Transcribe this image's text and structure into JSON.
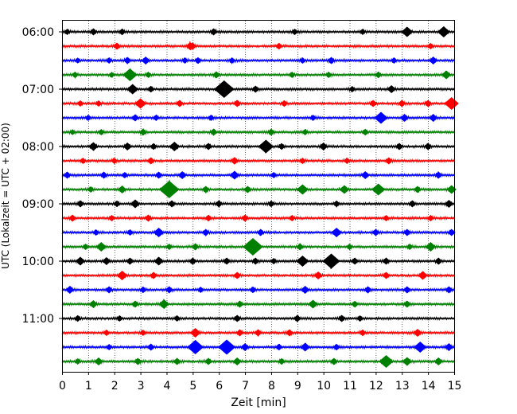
{
  "chart_data": {
    "type": "line",
    "title": "",
    "xlabel": "Zeit  [min]",
    "ylabel": "UTC (Lokalzeit = UTC + 02:00)",
    "xlim": [
      0,
      15
    ],
    "x_ticks": [
      "0",
      "1",
      "2",
      "3",
      "4",
      "5",
      "6",
      "7",
      "8",
      "9",
      "10",
      "11",
      "12",
      "13",
      "14",
      "15"
    ],
    "y_tick_labels": [
      "06:00",
      "07:00",
      "08:00",
      "09:00",
      "10:00",
      "11:00"
    ],
    "grid": "vertical dotted",
    "trace_interval_minutes": 15,
    "colors": [
      "#000000",
      "#ff0000",
      "#0000ff",
      "#008000"
    ],
    "series": [
      {
        "start": "06:00",
        "color": "#000000",
        "events": [
          [
            0.2,
            0.4
          ],
          [
            1.2,
            0.5
          ],
          [
            2.3,
            0.45
          ],
          [
            5.8,
            0.5
          ],
          [
            8.9,
            0.4
          ],
          [
            11.5,
            0.4
          ],
          [
            13.2,
            0.9
          ],
          [
            14.6,
            1.0
          ]
        ]
      },
      {
        "start": "06:15",
        "color": "#ff0000",
        "events": [
          [
            2.1,
            0.5
          ],
          [
            4.9,
            0.6
          ],
          [
            5.0,
            0.5
          ],
          [
            8.3,
            0.45
          ],
          [
            14.1,
            0.4
          ]
        ]
      },
      {
        "start": "06:30",
        "color": "#0000ff",
        "events": [
          [
            0.6,
            0.35
          ],
          [
            1.8,
            0.4
          ],
          [
            2.5,
            0.5
          ],
          [
            3.2,
            0.6
          ],
          [
            4.7,
            0.4
          ],
          [
            5.2,
            0.45
          ],
          [
            6.5,
            0.4
          ],
          [
            9.2,
            0.4
          ],
          [
            10.3,
            0.5
          ],
          [
            12.7,
            0.4
          ],
          [
            14.2,
            0.6
          ]
        ]
      },
      {
        "start": "06:45",
        "color": "#008000",
        "events": [
          [
            0.5,
            0.4
          ],
          [
            1.9,
            0.35
          ],
          [
            2.6,
            1.2
          ],
          [
            3.3,
            0.4
          ],
          [
            5.9,
            0.5
          ],
          [
            8.8,
            0.4
          ],
          [
            10.2,
            0.4
          ],
          [
            12.1,
            0.45
          ],
          [
            14.7,
            0.7
          ]
        ]
      },
      {
        "start": "07:00",
        "color": "#000000",
        "events": [
          [
            2.7,
            0.9
          ],
          [
            3.4,
            0.45
          ],
          [
            6.2,
            1.8
          ],
          [
            7.4,
            0.5
          ],
          [
            11.1,
            0.4
          ],
          [
            12.6,
            0.6
          ]
        ]
      },
      {
        "start": "07:15",
        "color": "#ff0000",
        "events": [
          [
            0.7,
            0.4
          ],
          [
            1.4,
            0.4
          ],
          [
            3.0,
            0.9
          ],
          [
            4.5,
            0.5
          ],
          [
            6.7,
            0.5
          ],
          [
            8.5,
            0.45
          ],
          [
            11.9,
            0.5
          ],
          [
            13.0,
            0.5
          ],
          [
            14.0,
            0.5
          ],
          [
            14.9,
            1.2
          ]
        ]
      },
      {
        "start": "07:30",
        "color": "#0000ff",
        "events": [
          [
            1.0,
            0.4
          ],
          [
            2.8,
            0.5
          ],
          [
            3.6,
            0.4
          ],
          [
            5.7,
            0.4
          ],
          [
            9.6,
            0.4
          ],
          [
            12.2,
            1.1
          ],
          [
            13.1,
            0.6
          ],
          [
            14.2,
            0.6
          ]
        ]
      },
      {
        "start": "07:45",
        "color": "#008000",
        "events": [
          [
            0.4,
            0.35
          ],
          [
            1.5,
            0.4
          ],
          [
            3.1,
            0.5
          ],
          [
            5.8,
            0.5
          ],
          [
            8.0,
            0.5
          ],
          [
            9.3,
            0.4
          ],
          [
            11.6,
            0.45
          ]
        ]
      },
      {
        "start": "08:00",
        "color": "#000000",
        "events": [
          [
            1.2,
            0.7
          ],
          [
            2.5,
            0.6
          ],
          [
            3.5,
            0.45
          ],
          [
            4.3,
            0.8
          ],
          [
            5.6,
            0.5
          ],
          [
            7.8,
            1.3
          ],
          [
            8.4,
            0.45
          ],
          [
            10.0,
            0.6
          ],
          [
            12.9,
            0.5
          ],
          [
            14.0,
            0.5
          ]
        ]
      },
      {
        "start": "08:15",
        "color": "#ff0000",
        "events": [
          [
            0.8,
            0.4
          ],
          [
            2.0,
            0.4
          ],
          [
            3.4,
            0.5
          ],
          [
            6.6,
            0.55
          ],
          [
            9.2,
            0.4
          ],
          [
            10.9,
            0.4
          ],
          [
            12.5,
            0.5
          ]
        ]
      },
      {
        "start": "08:30",
        "color": "#0000ff",
        "events": [
          [
            0.2,
            0.5
          ],
          [
            1.6,
            0.5
          ],
          [
            2.4,
            0.4
          ],
          [
            3.7,
            0.5
          ],
          [
            4.6,
            0.6
          ],
          [
            6.6,
            0.7
          ],
          [
            8.1,
            0.4
          ],
          [
            11.6,
            0.6
          ],
          [
            14.4,
            0.5
          ]
        ]
      },
      {
        "start": "08:45",
        "color": "#008000",
        "events": [
          [
            1.1,
            0.4
          ],
          [
            2.3,
            0.6
          ],
          [
            4.1,
            1.8
          ],
          [
            5.5,
            0.5
          ],
          [
            7.1,
            0.5
          ],
          [
            9.2,
            0.9
          ],
          [
            10.8,
            0.7
          ],
          [
            12.1,
            1.1
          ],
          [
            13.6,
            0.5
          ],
          [
            14.9,
            0.7
          ]
        ]
      },
      {
        "start": "09:00",
        "color": "#000000",
        "events": [
          [
            0.7,
            0.5
          ],
          [
            2.1,
            0.45
          ],
          [
            2.8,
            0.7
          ],
          [
            4.2,
            0.5
          ],
          [
            6.0,
            0.5
          ],
          [
            8.0,
            0.45
          ],
          [
            10.5,
            0.45
          ],
          [
            13.4,
            0.5
          ],
          [
            14.8,
            0.6
          ]
        ]
      },
      {
        "start": "09:15",
        "color": "#ff0000",
        "events": [
          [
            0.4,
            0.5
          ],
          [
            1.9,
            0.4
          ],
          [
            3.3,
            0.5
          ],
          [
            5.6,
            0.45
          ],
          [
            7.0,
            0.5
          ],
          [
            8.8,
            0.4
          ],
          [
            12.4,
            0.4
          ],
          [
            14.1,
            0.4
          ]
        ]
      },
      {
        "start": "09:30",
        "color": "#0000ff",
        "events": [
          [
            1.3,
            0.4
          ],
          [
            2.6,
            0.4
          ],
          [
            3.7,
            0.8
          ],
          [
            5.5,
            0.5
          ],
          [
            7.6,
            0.5
          ],
          [
            10.5,
            0.8
          ],
          [
            12.0,
            0.5
          ],
          [
            13.2,
            0.5
          ],
          [
            14.9,
            0.5
          ]
        ]
      },
      {
        "start": "09:45",
        "color": "#008000",
        "events": [
          [
            0.9,
            0.4
          ],
          [
            1.5,
            0.8
          ],
          [
            4.1,
            0.4
          ],
          [
            5.1,
            0.5
          ],
          [
            7.3,
            1.8
          ],
          [
            9.1,
            0.5
          ],
          [
            11.0,
            0.4
          ],
          [
            13.3,
            0.4
          ],
          [
            14.1,
            0.8
          ]
        ]
      },
      {
        "start": "10:00",
        "color": "#000000",
        "events": [
          [
            0.7,
            0.7
          ],
          [
            1.7,
            0.6
          ],
          [
            2.6,
            0.5
          ],
          [
            3.7,
            0.7
          ],
          [
            5.0,
            0.5
          ],
          [
            6.3,
            0.5
          ],
          [
            7.4,
            0.5
          ],
          [
            8.1,
            0.4
          ],
          [
            9.2,
            1.0
          ],
          [
            10.3,
            1.5
          ],
          [
            11.2,
            0.5
          ],
          [
            12.4,
            0.5
          ],
          [
            14.4,
            0.5
          ]
        ]
      },
      {
        "start": "10:15",
        "color": "#ff0000",
        "events": [
          [
            2.3,
            0.8
          ],
          [
            3.5,
            0.5
          ],
          [
            6.7,
            0.5
          ],
          [
            9.8,
            0.6
          ],
          [
            12.4,
            0.5
          ],
          [
            13.8,
            0.7
          ]
        ]
      },
      {
        "start": "10:30",
        "color": "#0000ff",
        "events": [
          [
            0.3,
            0.6
          ],
          [
            1.8,
            0.5
          ],
          [
            3.1,
            0.45
          ],
          [
            4.1,
            0.5
          ],
          [
            5.3,
            0.4
          ],
          [
            7.3,
            0.45
          ],
          [
            9.3,
            0.6
          ],
          [
            11.7,
            0.5
          ],
          [
            13.2,
            0.5
          ],
          [
            14.8,
            0.5
          ]
        ]
      },
      {
        "start": "10:45",
        "color": "#008000",
        "events": [
          [
            1.2,
            0.6
          ],
          [
            2.8,
            0.5
          ],
          [
            3.9,
            0.8
          ],
          [
            6.8,
            0.5
          ],
          [
            9.6,
            0.7
          ],
          [
            11.2,
            0.45
          ],
          [
            13.2,
            0.5
          ]
        ]
      },
      {
        "start": "11:00",
        "color": "#000000",
        "events": [
          [
            0.6,
            0.45
          ],
          [
            2.2,
            0.4
          ],
          [
            4.4,
            0.4
          ],
          [
            6.7,
            0.5
          ],
          [
            9.0,
            0.5
          ],
          [
            10.7,
            0.5
          ],
          [
            11.4,
            0.4
          ]
        ]
      },
      {
        "start": "11:15",
        "color": "#ff0000",
        "events": [
          [
            1.7,
            0.4
          ],
          [
            3.1,
            0.4
          ],
          [
            5.1,
            0.8
          ],
          [
            6.8,
            0.5
          ],
          [
            7.5,
            0.5
          ],
          [
            8.7,
            0.5
          ],
          [
            11.5,
            0.45
          ],
          [
            13.6,
            0.6
          ]
        ]
      },
      {
        "start": "11:30",
        "color": "#0000ff",
        "events": [
          [
            1.8,
            0.4
          ],
          [
            3.4,
            0.5
          ],
          [
            5.1,
            1.4
          ],
          [
            6.3,
            1.5
          ],
          [
            7.0,
            0.6
          ],
          [
            8.3,
            0.45
          ],
          [
            9.3,
            0.7
          ],
          [
            10.5,
            0.45
          ],
          [
            13.7,
            1.0
          ],
          [
            14.8,
            0.6
          ]
        ]
      },
      {
        "start": "11:45",
        "color": "#008000",
        "events": [
          [
            0.6,
            0.4
          ],
          [
            1.4,
            0.6
          ],
          [
            2.9,
            0.5
          ],
          [
            4.4,
            0.5
          ],
          [
            5.6,
            0.5
          ],
          [
            6.7,
            0.6
          ],
          [
            8.4,
            0.45
          ],
          [
            10.4,
            0.5
          ],
          [
            12.4,
            1.2
          ],
          [
            13.2,
            0.7
          ],
          [
            14.4,
            0.6
          ]
        ]
      }
    ]
  }
}
